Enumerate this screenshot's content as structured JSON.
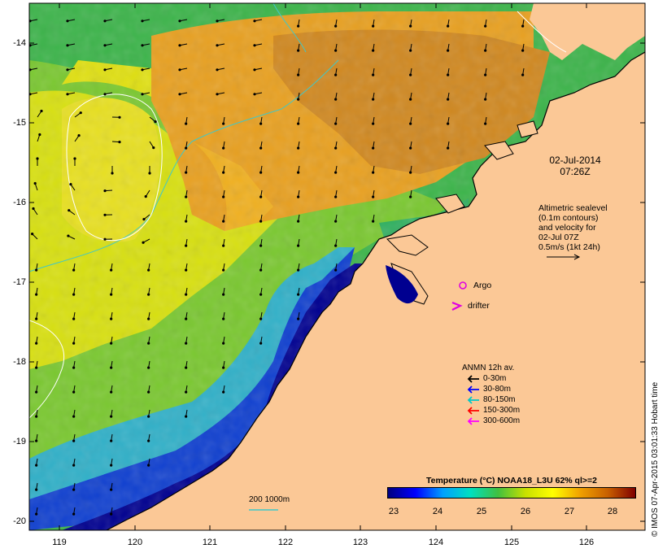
{
  "map": {
    "y_ticks": [
      "-14",
      "-15",
      "-16",
      "-17",
      "-18",
      "-19",
      "-20"
    ],
    "x_ticks": [
      "119",
      "120",
      "121",
      "122",
      "123",
      "124",
      "125",
      "126"
    ],
    "datetime_line1": "02-Jul-2014",
    "datetime_line2": "07:26Z",
    "altimetry_lines": [
      "Altimetric sealevel",
      "(0.1m contours)",
      "and velocity for",
      "02-Jul 07Z",
      "0.5m/s (1kt 24h)"
    ],
    "argo_label": "Argo",
    "drifter_label": "drifter",
    "scale_label": "200  1000m",
    "credit": "© IMOS 07-Apr-2015 03:01:33 Hobart time"
  },
  "anmn_legend": {
    "title": "ANMN 12h av.",
    "items": [
      {
        "label": "0-30m",
        "color": "#000000"
      },
      {
        "label": "30-80m",
        "color": "#0000ff"
      },
      {
        "label": "80-150m",
        "color": "#00c8c8"
      },
      {
        "label": "150-300m",
        "color": "#ff0000"
      },
      {
        "label": "300-600m",
        "color": "#ff00ff"
      }
    ]
  },
  "colorbar": {
    "title": "Temperature (°C) NOAA18_L3U 62% ql>=2",
    "ticks": [
      "23",
      "24",
      "25",
      "26",
      "27",
      "28"
    ],
    "colors": [
      "#000080",
      "#0000ff",
      "#00a0ff",
      "#00e0c0",
      "#40c040",
      "#c8e000",
      "#ffff00",
      "#f0a000",
      "#c86000",
      "#800000"
    ]
  },
  "colors": {
    "land": "#fbc896",
    "contour": "#ffffff",
    "bathymetry": "#40c8c8",
    "argo": "#e000e0",
    "drifter": "#e000e0"
  }
}
